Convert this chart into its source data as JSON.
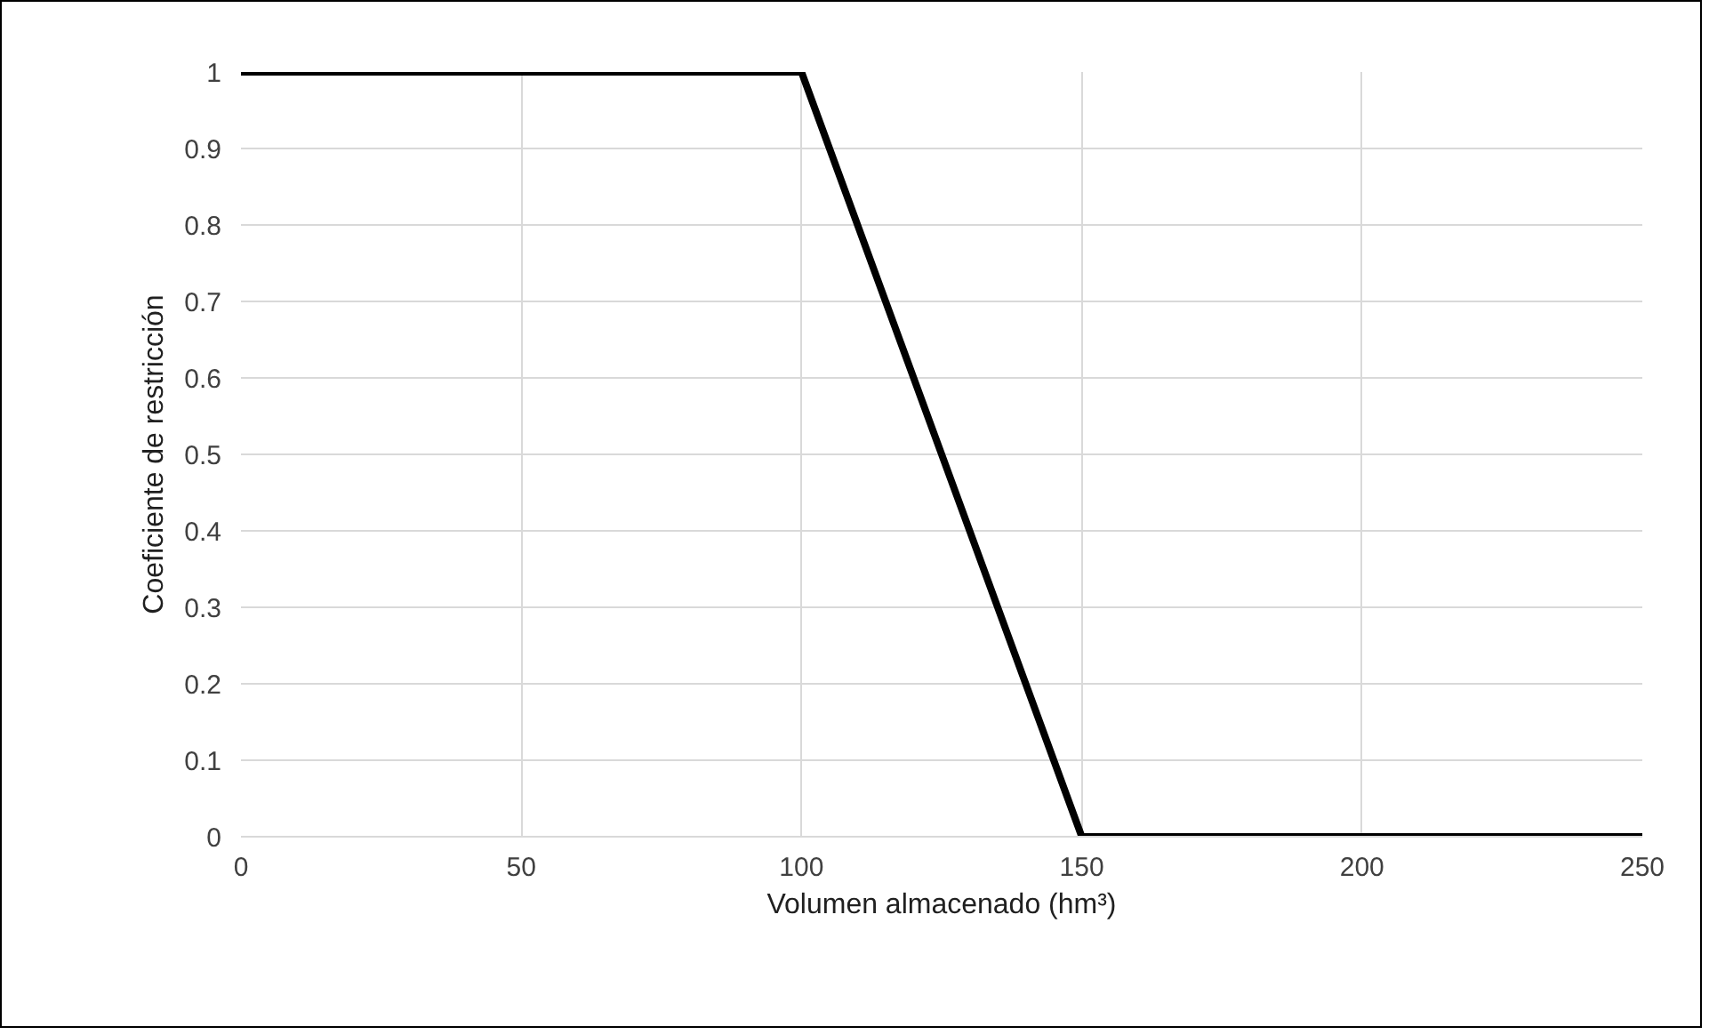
{
  "chart_data": {
    "type": "line",
    "xlabel": "Volumen almacenado (hm³)",
    "ylabel": "Coeficiente de restricción",
    "x": [
      0,
      100,
      150,
      250
    ],
    "series": [
      {
        "color": "#000000",
        "values": [
          1,
          1,
          0,
          0
        ]
      }
    ],
    "xlim": [
      0,
      250
    ],
    "xticks": [
      0,
      50,
      100,
      150,
      200,
      250
    ],
    "ylim": [
      0,
      1
    ],
    "yticks": [
      0,
      0.1,
      0.2,
      0.3,
      0.4,
      0.5,
      0.6,
      0.7,
      0.8,
      0.9,
      1
    ],
    "grid": true,
    "marker": "none",
    "line_style": "solid"
  }
}
